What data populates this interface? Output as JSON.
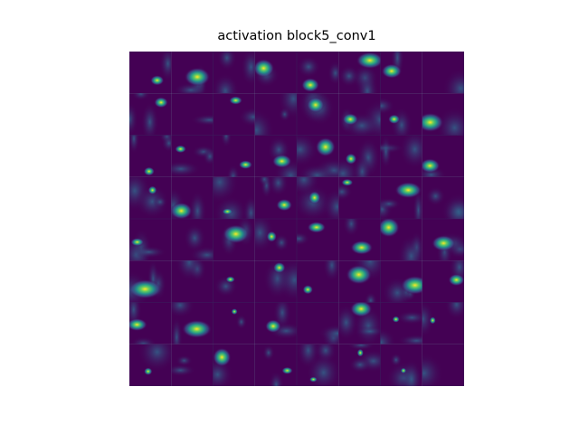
{
  "title": "activation block5_conv1"
}
